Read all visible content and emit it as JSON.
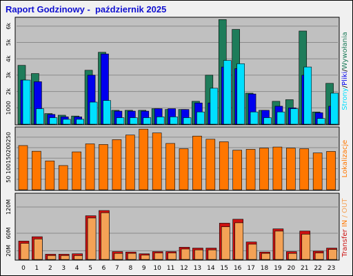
{
  "title": "Raport Godzinowy -  październik 2025",
  "colors": {
    "pages": "#1e7c5a",
    "files": "#0000ee",
    "visits": "#00e0ff",
    "traffic": "#ff7700",
    "transfer_in": "#cc1111",
    "transfer_out": "#f4a256",
    "panel_bg": "#c0c0c0",
    "grid": "#8a8a8a"
  },
  "chart_data": [
    {
      "type": "bar",
      "panel": "requests",
      "categories": [
        "0",
        "1",
        "2",
        "3",
        "4",
        "5",
        "6",
        "7",
        "8",
        "9",
        "10",
        "11",
        "12",
        "13",
        "14",
        "15",
        "16",
        "17",
        "18",
        "19",
        "20",
        "21",
        "22",
        "23"
      ],
      "y_ticks": [
        "1000",
        "2k",
        "3k",
        "4k",
        "5k",
        "6k"
      ],
      "ylim": [
        0,
        6500
      ],
      "ylabel_parts": [
        "Strony",
        "/",
        "Pliki",
        "/",
        "Wywołania"
      ],
      "series": [
        {
          "name": "Strony",
          "values": [
            3600,
            3100,
            650,
            550,
            500,
            3300,
            4400,
            850,
            850,
            850,
            950,
            900,
            900,
            1400,
            3000,
            6400,
            5800,
            1900,
            850,
            1400,
            1500,
            5700,
            750,
            2500
          ]
        },
        {
          "name": "Pliki",
          "values": [
            2700,
            2600,
            600,
            450,
            450,
            3000,
            4300,
            800,
            800,
            800,
            950,
            950,
            900,
            1300,
            1300,
            3500,
            3400,
            1850,
            850,
            1100,
            1000,
            3000,
            700,
            1100
          ]
        },
        {
          "name": "Wywołania",
          "values": [
            2700,
            950,
            400,
            300,
            300,
            1350,
            1450,
            400,
            400,
            400,
            450,
            450,
            400,
            750,
            2200,
            3900,
            3700,
            750,
            400,
            750,
            950,
            3500,
            350,
            1900
          ]
        }
      ]
    },
    {
      "type": "bar",
      "panel": "visits",
      "categories": [
        "0",
        "1",
        "2",
        "3",
        "4",
        "5",
        "6",
        "7",
        "8",
        "9",
        "10",
        "11",
        "12",
        "13",
        "14",
        "15",
        "16",
        "17",
        "18",
        "19",
        "20",
        "21",
        "22",
        "23"
      ],
      "y_ticks": [
        "50",
        "100",
        "150",
        "200",
        "250"
      ],
      "ylim": [
        0,
        295
      ],
      "ylabel": "Lokalizacje",
      "series": [
        {
          "name": "Lokalizacje",
          "values": [
            210,
            183,
            137,
            115,
            180,
            218,
            215,
            238,
            260,
            288,
            270,
            220,
            195,
            255,
            240,
            228,
            188,
            192,
            198,
            203,
            198,
            195,
            175,
            182
          ]
        }
      ]
    },
    {
      "type": "bar",
      "panel": "transfer",
      "categories": [
        "0",
        "1",
        "2",
        "3",
        "4",
        "5",
        "6",
        "7",
        "8",
        "9",
        "10",
        "11",
        "12",
        "13",
        "14",
        "15",
        "16",
        "17",
        "18",
        "19",
        "20",
        "21",
        "22",
        "23"
      ],
      "y_ticks": [
        "20M",
        "60M",
        "120M"
      ],
      "ylim": [
        0,
        150
      ],
      "ylabel_parts": [
        "Transfer",
        " ",
        "IN",
        " / ",
        "OUT"
      ],
      "series": [
        {
          "name": "IN",
          "values": [
            42,
            52,
            12,
            12,
            13,
            100,
            112,
            18,
            17,
            13,
            18,
            18,
            28,
            26,
            26,
            83,
            92,
            40,
            17,
            70,
            18,
            65,
            19,
            26
          ]
        },
        {
          "name": "OUT",
          "values": [
            40,
            50,
            12,
            12,
            12,
            98,
            110,
            17,
            17,
            13,
            18,
            18,
            27,
            25,
            25,
            78,
            87,
            38,
            17,
            68,
            17,
            61,
            18,
            26
          ]
        }
      ]
    }
  ]
}
